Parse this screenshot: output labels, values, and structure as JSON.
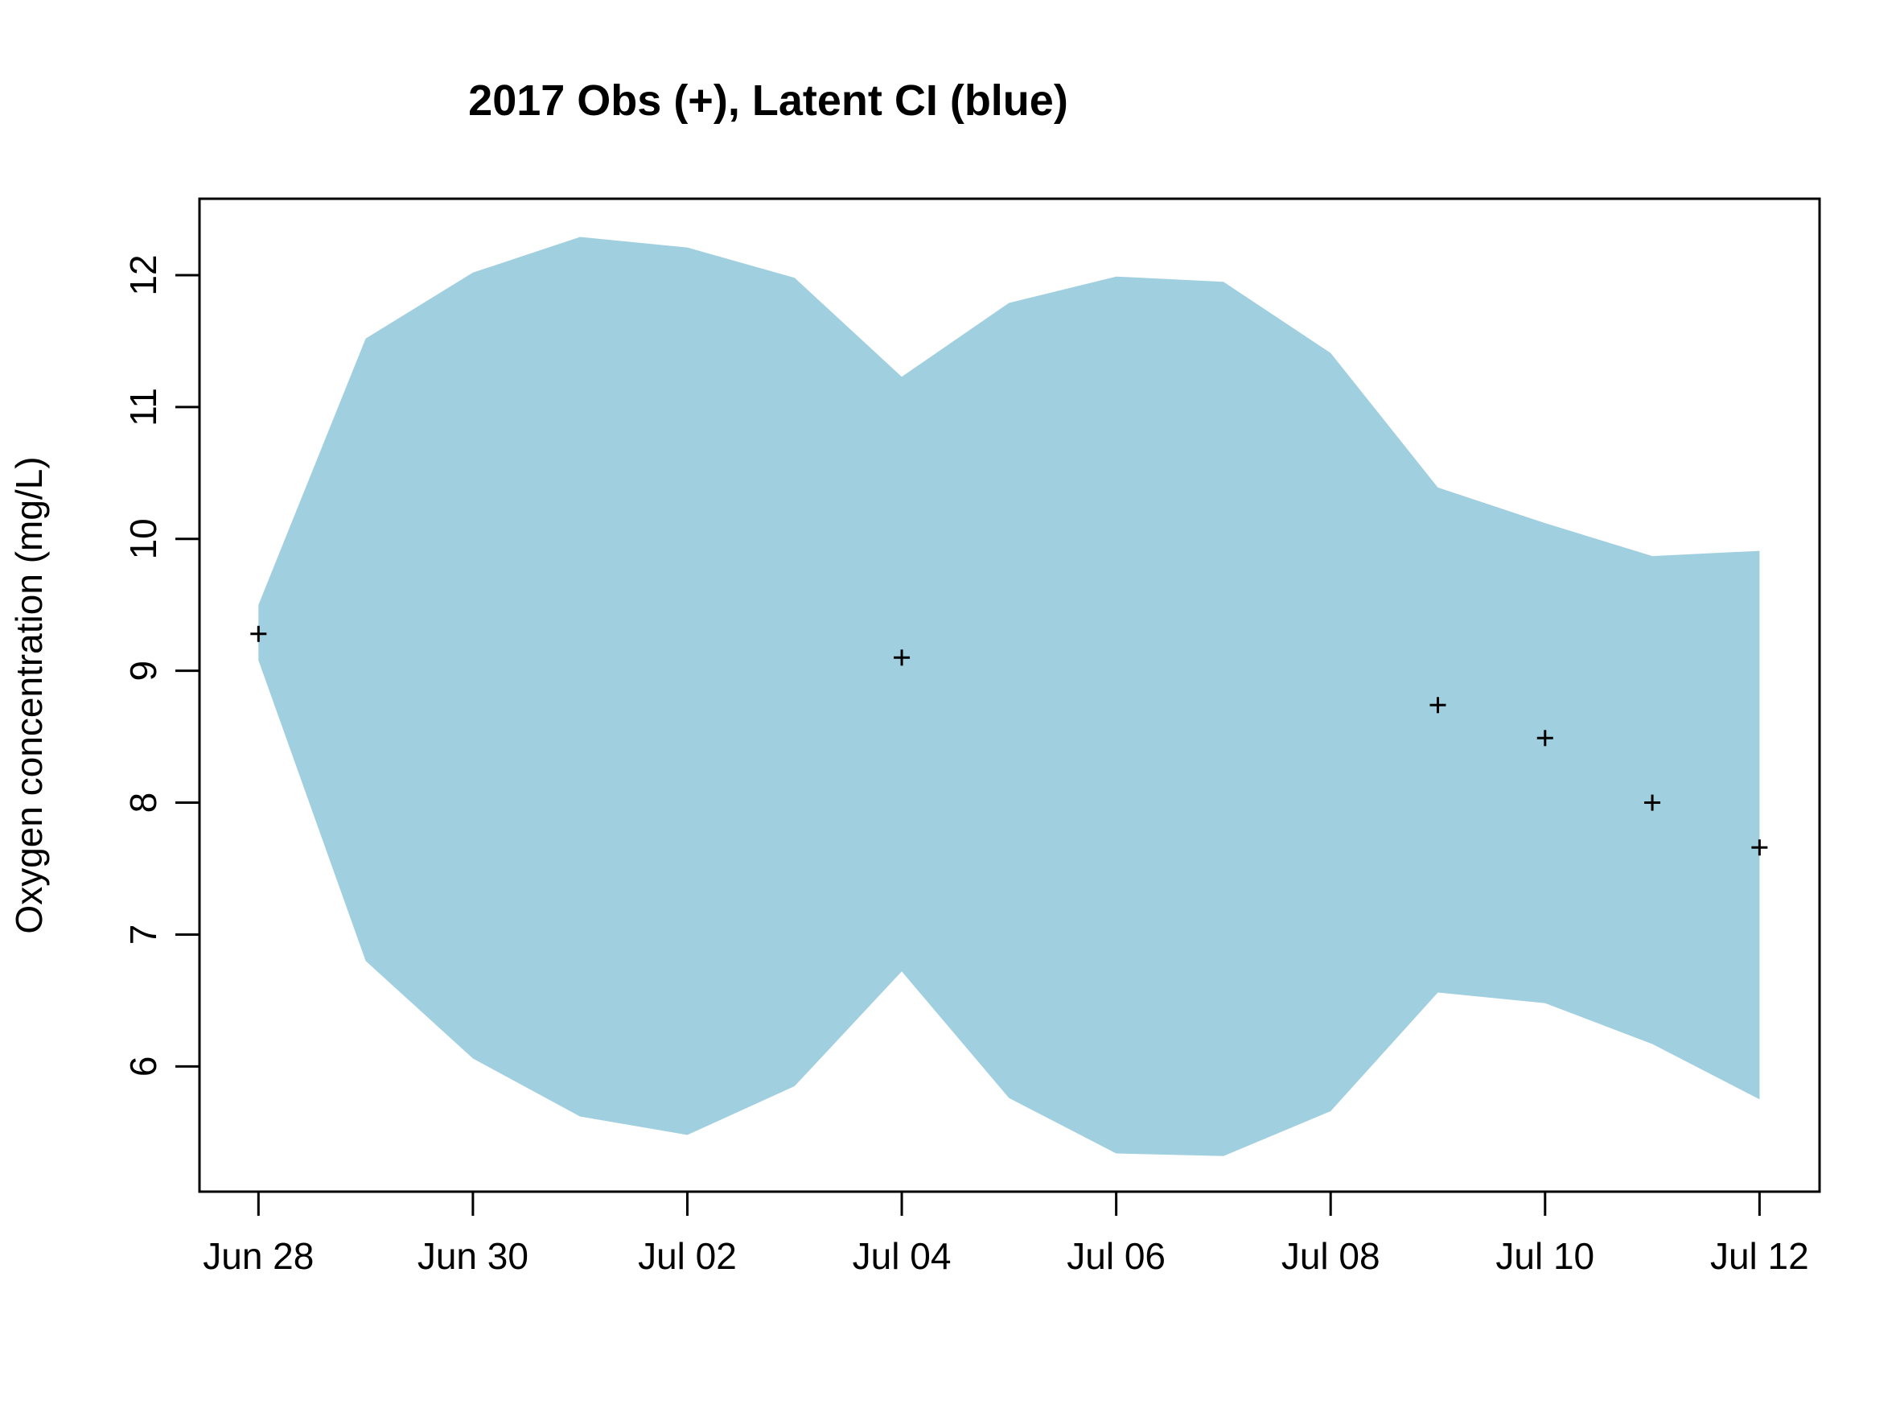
{
  "chart_data": {
    "type": "area",
    "title": "2017 Obs (+), Latent CI (blue)",
    "xlabel": "",
    "ylabel": "Oxygen concentration (mg/L)",
    "x_ticks": [
      "Jun 28",
      "Jun 30",
      "Jul 02",
      "Jul 04",
      "Jul 06",
      "Jul 08",
      "Jul 10",
      "Jul 12"
    ],
    "x_tick_dates": [
      "2017-06-28",
      "2017-06-30",
      "2017-07-02",
      "2017-07-04",
      "2017-07-06",
      "2017-07-08",
      "2017-07-10",
      "2017-07-12"
    ],
    "y_ticks": [
      "6",
      "7",
      "8",
      "9",
      "10",
      "11",
      "12"
    ],
    "xlim": [
      "2017-06-27.45",
      "2017-07-12.56"
    ],
    "ylim": [
      5.05,
      12.58
    ],
    "grid": false,
    "legend": "none",
    "ci_color": "#a0cfe0",
    "point_color": "#000000",
    "series": [
      {
        "name": "Latent CI",
        "dates": [
          "2017-06-28",
          "2017-06-29",
          "2017-06-30",
          "2017-07-01",
          "2017-07-02",
          "2017-07-03",
          "2017-07-04",
          "2017-07-05",
          "2017-07-06",
          "2017-07-07",
          "2017-07-08",
          "2017-07-09",
          "2017-07-10",
          "2017-07-11",
          "2017-07-12"
        ],
        "upper": [
          9.5,
          11.52,
          12.02,
          12.29,
          12.21,
          11.98,
          11.23,
          11.79,
          11.99,
          11.95,
          11.41,
          10.39,
          10.12,
          9.87,
          9.91
        ],
        "lower": [
          9.08,
          6.8,
          6.06,
          5.62,
          5.48,
          5.85,
          6.72,
          5.76,
          5.34,
          5.32,
          5.66,
          6.56,
          6.48,
          6.17,
          5.75
        ]
      },
      {
        "name": "Obs",
        "dates": [
          "2017-06-28",
          "2017-07-04",
          "2017-07-09",
          "2017-07-10",
          "2017-07-11",
          "2017-07-12"
        ],
        "values": [
          9.28,
          9.1,
          8.74,
          8.49,
          8.0,
          7.66
        ]
      }
    ]
  }
}
